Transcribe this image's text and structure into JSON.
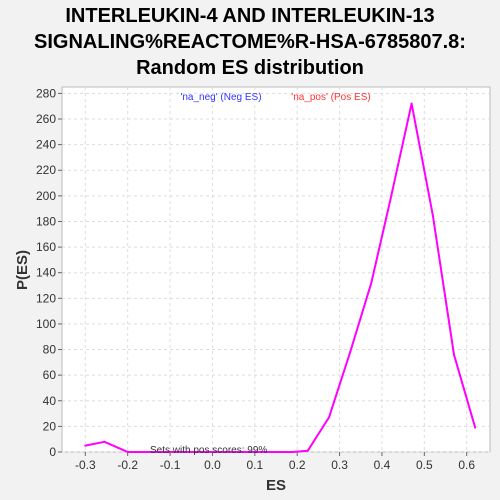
{
  "chart_data": {
    "type": "line",
    "title_lines": [
      "INTERLEUKIN-4 AND INTERLEUKIN-13",
      "SIGNALING%REACTOME%R-HSA-6785807.8:",
      "Random ES distribution"
    ],
    "xlabel": "ES",
    "ylabel": "P(ES)",
    "xlim": [
      -0.355,
      0.655
    ],
    "ylim": [
      0,
      285
    ],
    "x_ticks": [
      -0.3,
      -0.2,
      -0.1,
      0.0,
      0.1,
      0.2,
      0.3,
      0.4,
      0.5,
      0.6
    ],
    "x_tick_labels": [
      "-0.3",
      "-0.2",
      "-0.1",
      "0.0",
      "0.1",
      "0.2",
      "0.3",
      "0.4",
      "0.5",
      "0.6"
    ],
    "y_ticks": [
      0,
      20,
      40,
      60,
      80,
      100,
      120,
      140,
      160,
      180,
      200,
      220,
      240,
      260,
      280
    ],
    "y_tick_labels": [
      "0",
      "20",
      "40",
      "60",
      "80",
      "100",
      "120",
      "140",
      "160",
      "180",
      "200",
      "220",
      "240",
      "260",
      "280"
    ],
    "grid": true,
    "legend_placement": "top-center",
    "legend": [
      {
        "label": "'na_neg' (Neg ES)",
        "color": "#3333ff"
      },
      {
        "label": "'na_pos' (Pos ES)",
        "color": "#ff3333"
      }
    ],
    "annotation": "Sets with pos scores: 99%",
    "series": [
      {
        "color": "#ff00ff",
        "x": [
          -0.3,
          -0.255,
          -0.2,
          -0.15,
          -0.1,
          -0.05,
          0.0,
          0.05,
          0.1,
          0.15,
          0.19,
          0.225,
          0.275,
          0.325,
          0.375,
          0.42,
          0.47,
          0.52,
          0.57,
          0.62
        ],
        "y": [
          5,
          8,
          0,
          0,
          0,
          0,
          0,
          0,
          0,
          0,
          0,
          1,
          27,
          78,
          132,
          197,
          272,
          185,
          76,
          19
        ]
      }
    ]
  }
}
